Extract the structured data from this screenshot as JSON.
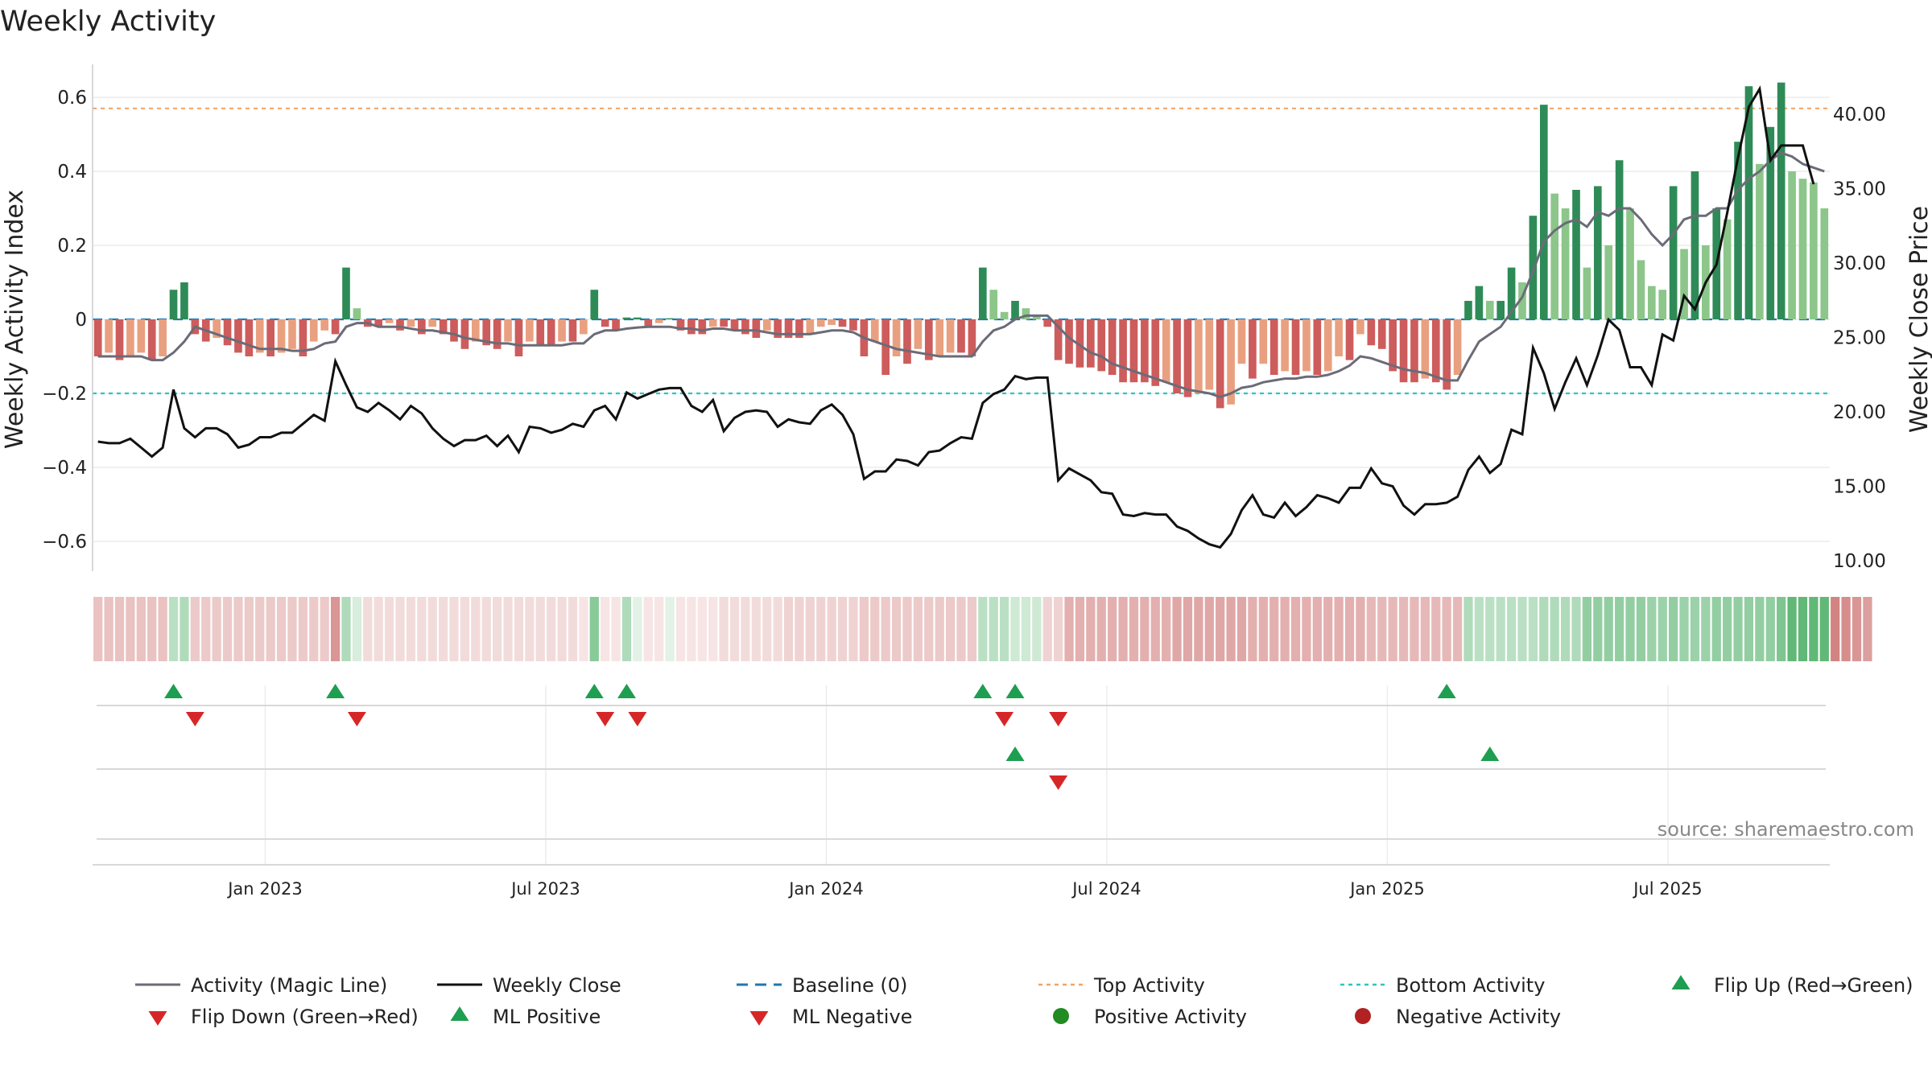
{
  "title": "Weekly Activity",
  "source": "source: sharemaestro.com",
  "colors": {
    "pos_strong": "#2e8b57",
    "pos_light": "#8cc68a",
    "neg_strong": "#cd5c5c",
    "neg_light": "#e9a080",
    "magic_line": "#6b6b78",
    "close_line": "#111111",
    "baseline": "#1f77b4",
    "top": "#f4a261",
    "bottom": "#2ec4c4",
    "flip_up": "#1e9e50",
    "flip_down": "#d62728",
    "pos_dot": "#228b22",
    "neg_dot": "#b22222"
  },
  "chart_data": {
    "type": "bar",
    "title": "Weekly Activity",
    "ylabel": "Weekly Activity Index",
    "ylabel_right": "Weekly Close Price",
    "ylim": [
      -0.7,
      0.7
    ],
    "ylim_right": [
      10,
      43
    ],
    "y_ticks": [
      {
        "v": 0.6,
        "label": "0.6"
      },
      {
        "v": 0.4,
        "label": "0.4"
      },
      {
        "v": 0.2,
        "label": "0.2"
      },
      {
        "v": 0,
        "label": "0"
      },
      {
        "v": -0.2,
        "label": "−0.2"
      },
      {
        "v": -0.4,
        "label": "−0.4"
      },
      {
        "v": -0.6,
        "label": "−0.6"
      }
    ],
    "y2_ticks": [
      {
        "v": 40,
        "label": "40.00"
      },
      {
        "v": 35,
        "label": "35.00"
      },
      {
        "v": 30,
        "label": "30.00"
      },
      {
        "v": 25,
        "label": "25.00"
      },
      {
        "v": 20,
        "label": "20.00"
      },
      {
        "v": 15,
        "label": "15.00"
      },
      {
        "v": 10,
        "label": "10.00"
      }
    ],
    "x_ticks": [
      {
        "week": 15.5,
        "label": "Jan 2023"
      },
      {
        "week": 41.5,
        "label": "Jul 2023"
      },
      {
        "week": 67.5,
        "label": "Jan 2024"
      },
      {
        "week": 93.5,
        "label": "Jul 2024"
      },
      {
        "week": 119.5,
        "label": "Jan 2025"
      },
      {
        "week": 145.5,
        "label": "Jul 2025"
      }
    ],
    "top_activity": 0.57,
    "bottom_activity": -0.2,
    "baseline": 0,
    "weekly_activity": [
      -0.1,
      -0.09,
      -0.11,
      -0.1,
      -0.09,
      -0.11,
      -0.1,
      0.08,
      0.1,
      -0.04,
      -0.06,
      -0.05,
      -0.07,
      -0.09,
      -0.1,
      -0.09,
      -0.1,
      -0.09,
      -0.08,
      -0.1,
      -0.06,
      -0.03,
      -0.04,
      0.14,
      0.03,
      -0.02,
      -0.02,
      -0.01,
      -0.03,
      -0.02,
      -0.04,
      -0.02,
      -0.04,
      -0.06,
      -0.08,
      -0.06,
      -0.07,
      -0.08,
      -0.06,
      -0.1,
      -0.06,
      -0.07,
      -0.07,
      -0.06,
      -0.06,
      -0.04,
      0.08,
      -0.02,
      -0.03,
      0.005,
      0.005,
      -0.02,
      -0.01,
      0.003,
      -0.03,
      -0.04,
      -0.04,
      -0.02,
      -0.02,
      -0.03,
      -0.04,
      -0.05,
      -0.03,
      -0.05,
      -0.05,
      -0.05,
      -0.04,
      -0.02,
      -0.015,
      -0.02,
      -0.03,
      -0.1,
      -0.06,
      -0.15,
      -0.1,
      -0.12,
      -0.08,
      -0.11,
      -0.1,
      -0.09,
      -0.09,
      -0.1,
      0.14,
      0.08,
      0.02,
      0.05,
      0.03,
      0.01,
      -0.02,
      -0.11,
      -0.12,
      -0.13,
      -0.13,
      -0.14,
      -0.15,
      -0.17,
      -0.17,
      -0.17,
      -0.18,
      -0.17,
      -0.2,
      -0.21,
      -0.2,
      -0.19,
      -0.24,
      -0.23,
      -0.12,
      -0.16,
      -0.12,
      -0.15,
      -0.14,
      -0.15,
      -0.14,
      -0.15,
      -0.14,
      -0.1,
      -0.11,
      -0.04,
      -0.07,
      -0.08,
      -0.14,
      -0.17,
      -0.17,
      -0.16,
      -0.17,
      -0.19,
      -0.15,
      0.05,
      0.09,
      0.05,
      0.05,
      0.14,
      0.1,
      0.28,
      0.58,
      0.34,
      0.3,
      0.35,
      0.14,
      0.36,
      0.2,
      0.43,
      0.3,
      0.16,
      0.09,
      0.08,
      0.36,
      0.19,
      0.4,
      0.2,
      0.3,
      0.27,
      0.48,
      0.63,
      0.42,
      0.52,
      0.64,
      0.4,
      0.38,
      0.37,
      0.3
    ],
    "magic_line": [
      -0.1,
      -0.1,
      -0.1,
      -0.1,
      -0.1,
      -0.11,
      -0.11,
      -0.09,
      -0.06,
      -0.02,
      -0.03,
      -0.04,
      -0.05,
      -0.06,
      -0.07,
      -0.08,
      -0.08,
      -0.08,
      -0.085,
      -0.085,
      -0.08,
      -0.065,
      -0.06,
      -0.02,
      -0.01,
      -0.01,
      -0.02,
      -0.02,
      -0.02,
      -0.025,
      -0.03,
      -0.03,
      -0.035,
      -0.04,
      -0.05,
      -0.055,
      -0.06,
      -0.065,
      -0.065,
      -0.07,
      -0.07,
      -0.07,
      -0.07,
      -0.07,
      -0.065,
      -0.065,
      -0.04,
      -0.03,
      -0.03,
      -0.025,
      -0.022,
      -0.02,
      -0.02,
      -0.02,
      -0.025,
      -0.025,
      -0.03,
      -0.025,
      -0.025,
      -0.03,
      -0.03,
      -0.03,
      -0.035,
      -0.04,
      -0.04,
      -0.04,
      -0.04,
      -0.035,
      -0.03,
      -0.03,
      -0.035,
      -0.05,
      -0.06,
      -0.07,
      -0.08,
      -0.085,
      -0.09,
      -0.095,
      -0.1,
      -0.1,
      -0.1,
      -0.1,
      -0.06,
      -0.03,
      -0.02,
      0.0,
      0.01,
      0.01,
      0.01,
      -0.02,
      -0.05,
      -0.07,
      -0.09,
      -0.1,
      -0.12,
      -0.13,
      -0.14,
      -0.15,
      -0.16,
      -0.17,
      -0.18,
      -0.19,
      -0.195,
      -0.2,
      -0.21,
      -0.2,
      -0.185,
      -0.18,
      -0.17,
      -0.165,
      -0.16,
      -0.16,
      -0.155,
      -0.155,
      -0.15,
      -0.14,
      -0.125,
      -0.1,
      -0.105,
      -0.115,
      -0.125,
      -0.135,
      -0.14,
      -0.145,
      -0.155,
      -0.165,
      -0.165,
      -0.11,
      -0.06,
      -0.04,
      -0.02,
      0.02,
      0.06,
      0.13,
      0.21,
      0.24,
      0.26,
      0.27,
      0.25,
      0.29,
      0.28,
      0.3,
      0.3,
      0.27,
      0.23,
      0.2,
      0.23,
      0.27,
      0.28,
      0.28,
      0.3,
      0.3,
      0.35,
      0.38,
      0.4,
      0.43,
      0.45,
      0.44,
      0.42,
      0.41,
      0.4
    ],
    "weekly_close": [
      18.0,
      17.9,
      17.9,
      18.2,
      17.6,
      17,
      17.6,
      21.5,
      18.9,
      18.3,
      18.9,
      18.9,
      18.5,
      17.6,
      17.8,
      18.3,
      18.3,
      18.6,
      18.6,
      19.2,
      19.8,
      19.4,
      23.4,
      21.8,
      20.3,
      20,
      20.6,
      20.1,
      19.5,
      20.4,
      19.9,
      18.9,
      18.2,
      17.7,
      18.1,
      18.1,
      18.4,
      17.7,
      18.4,
      17.3,
      19.0,
      18.9,
      18.6,
      18.8,
      19.2,
      19.0,
      20.1,
      20.4,
      19.5,
      21.3,
      20.9,
      21.2,
      21.5,
      21.6,
      21.6,
      20.4,
      20.0,
      20.8,
      18.7,
      19.6,
      20.0,
      20.1,
      20.0,
      19.0,
      19.5,
      19.3,
      19.2,
      20.1,
      20.5,
      19.8,
      18.5,
      15.5,
      16.0,
      16.0,
      16.8,
      16.7,
      16.4,
      17.3,
      17.4,
      17.9,
      18.3,
      18.2,
      20.6,
      21.2,
      21.5,
      22.4,
      22.2,
      22.3,
      22.3,
      15.4,
      16.2,
      15.8,
      15.4,
      14.6,
      14.5,
      13.1,
      13.0,
      13.2,
      13.1,
      13.1,
      12.3,
      12.0,
      11.5,
      11.1,
      10.9,
      11.8,
      13.4,
      14.4,
      13.1,
      12.9,
      13.9,
      13.0,
      13.6,
      14.4,
      14.2,
      13.9,
      14.9,
      14.9,
      16.2,
      15.2,
      15.0,
      13.7,
      13.1,
      13.8,
      13.8,
      13.9,
      14.3,
      16.1,
      17.0,
      15.9,
      16.5,
      18.8,
      18.5,
      24.3,
      22.6,
      20.2,
      22.0,
      23.6,
      21.8,
      23.8,
      26.2,
      25.5,
      23.0,
      23.0,
      21.8,
      25.2,
      24.8,
      27.8,
      26.9,
      28.7,
      29.9,
      33.4,
      37.1,
      40.5,
      41.7,
      36.9,
      37.9,
      37.9,
      37.9,
      35.3
    ],
    "strip_intensity": [
      0.35,
      0.35,
      0.35,
      0.35,
      0.35,
      0.35,
      0.35,
      0.35,
      0.4,
      0.3,
      0.3,
      0.3,
      0.3,
      0.3,
      0.3,
      0.3,
      0.3,
      0.3,
      0.3,
      0.3,
      0.3,
      0.3,
      0.6,
      0.4,
      0.2,
      0.2,
      0.2,
      0.2,
      0.2,
      0.2,
      0.2,
      0.2,
      0.2,
      0.2,
      0.2,
      0.2,
      0.2,
      0.2,
      0.2,
      0.2,
      0.2,
      0.2,
      0.2,
      0.2,
      0.2,
      0.15,
      0.6,
      0.15,
      0.15,
      0.4,
      0.15,
      0.15,
      0.15,
      0.15,
      0.15,
      0.15,
      0.15,
      0.15,
      0.2,
      0.2,
      0.2,
      0.2,
      0.2,
      0.2,
      0.25,
      0.25,
      0.25,
      0.25,
      0.25,
      0.25,
      0.25,
      0.3,
      0.3,
      0.3,
      0.3,
      0.3,
      0.3,
      0.3,
      0.3,
      0.3,
      0.3,
      0.3,
      0.35,
      0.35,
      0.35,
      0.25,
      0.25,
      0.25,
      0.25,
      0.25,
      0.45,
      0.45,
      0.45,
      0.45,
      0.45,
      0.45,
      0.45,
      0.45,
      0.45,
      0.45,
      0.5,
      0.5,
      0.5,
      0.5,
      0.5,
      0.5,
      0.5,
      0.45,
      0.45,
      0.45,
      0.45,
      0.45,
      0.45,
      0.45,
      0.45,
      0.45,
      0.45,
      0.45,
      0.4,
      0.4,
      0.4,
      0.4,
      0.4,
      0.4,
      0.4,
      0.4,
      0.4,
      0.4,
      0.35,
      0.35,
      0.35,
      0.35,
      0.35,
      0.35,
      0.4,
      0.4,
      0.4,
      0.4,
      0.55,
      0.55,
      0.55,
      0.55,
      0.55,
      0.55,
      0.5,
      0.5,
      0.55,
      0.5,
      0.5,
      0.5,
      0.55,
      0.55,
      0.55,
      0.55,
      0.55,
      0.55,
      0.65,
      0.8,
      0.8,
      0.8,
      0.8,
      0.7,
      0.65,
      0.6,
      0.55
    ],
    "flip_up_weeks": [
      7,
      22,
      46,
      49,
      82,
      85,
      125
    ],
    "flip_down_weeks": [
      9,
      24,
      47,
      50,
      84,
      89
    ],
    "ml_positive_weeks": [
      85,
      129
    ],
    "ml_negative_weeks": [
      89
    ],
    "legend": [
      {
        "key": "magic",
        "label": "Activity (Magic Line)"
      },
      {
        "key": "close",
        "label": "Weekly Close"
      },
      {
        "key": "baseline",
        "label": "Baseline (0)"
      },
      {
        "key": "top",
        "label": "Top Activity"
      },
      {
        "key": "bottom",
        "label": "Bottom Activity"
      },
      {
        "key": "flipup",
        "label": "Flip Up (Red→Green)"
      },
      {
        "key": "flipdown",
        "label": "Flip Down (Green→Red)"
      },
      {
        "key": "mlpos",
        "label": "ML Positive"
      },
      {
        "key": "mlneg",
        "label": "ML Negative"
      },
      {
        "key": "posdot",
        "label": "Positive Activity"
      },
      {
        "key": "negdot",
        "label": "Negative Activity"
      }
    ]
  }
}
